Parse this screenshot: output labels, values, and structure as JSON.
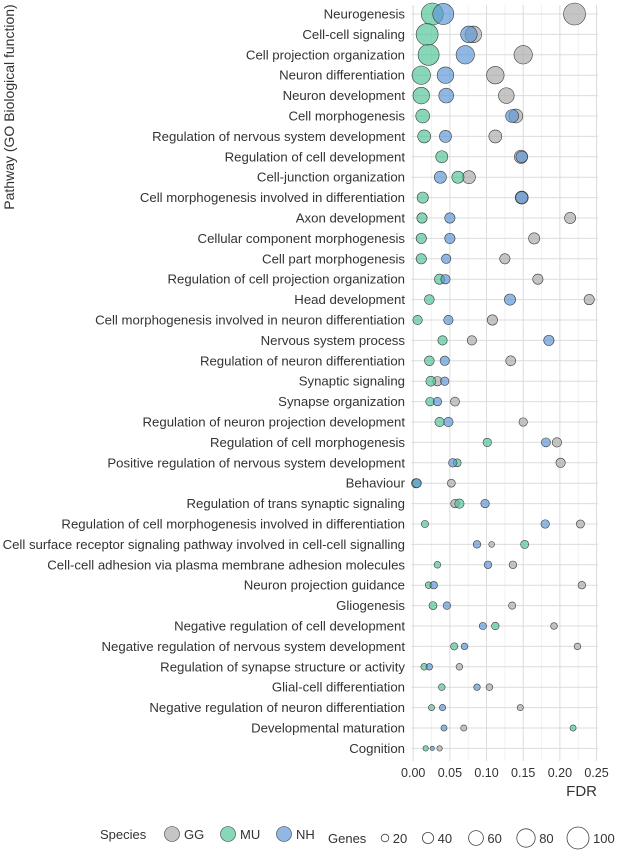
{
  "chart_data": {
    "type": "scatter",
    "ylabel": "Pathway (GO Biological function)",
    "xlabel": "FDR",
    "xlim": [
      -0.003,
      0.252
    ],
    "xticks": [
      0.0,
      0.05,
      0.1,
      0.15,
      0.2,
      0.25
    ],
    "xtick_labels": [
      "0.00",
      "0.05",
      "0.10",
      "0.15",
      "0.20",
      "0.25"
    ],
    "grid": true,
    "categories": [
      "Neurogenesis",
      "Cell-cell signaling",
      "Cell projection organization",
      "Neuron differentiation",
      "Neuron development",
      "Cell morphogenesis",
      "Regulation of nervous system development",
      "Regulation of cell development",
      "Cell-junction organization",
      "Cell morphogenesis involved in differentiation",
      "Axon development",
      "Cellular component morphogenesis",
      "Cell part morphogenesis",
      "Regulation of cell projection organization",
      "Head development",
      "Cell morphogenesis involved in neuron differentiation",
      "Nervous system process",
      "Regulation of neuron differentiation",
      "Synaptic signaling",
      "Synapse organization",
      "Regulation of neuron projection development",
      "Regulation of cell morphogenesis",
      "Positive regulation of nervous system development",
      "Behaviour",
      "Regulation of trans synaptic signaling",
      "Regulation of cell morphogenesis involved in differentiation",
      "Cell surface receptor signaling pathway involved in cell-cell signalling",
      "Cell-cell adhesion via plasma membrane adhesion molecules",
      "Neuron projection guidance",
      "Gliogenesis",
      "Negative regulation of cell development",
      "Negative regulation of nervous system development",
      "Regulation of synapse structure or activity",
      "Glial-cell differentiation",
      "Negative regulation of neuron differentiation",
      "Developmental maturation",
      "Cognition"
    ],
    "series": [
      {
        "name": "GG",
        "color": "#aaaaaa",
        "points": [
          {
            "fdr": 0.22,
            "genes": 100
          },
          {
            "fdr": 0.082,
            "genes": 70
          },
          {
            "fdr": 0.15,
            "genes": 80
          },
          {
            "fdr": 0.112,
            "genes": 75
          },
          {
            "fdr": 0.127,
            "genes": 65
          },
          {
            "fdr": 0.14,
            "genes": 55
          },
          {
            "fdr": 0.112,
            "genes": 50
          },
          {
            "fdr": 0.147,
            "genes": 52
          },
          {
            "fdr": 0.076,
            "genes": 50
          },
          {
            "fdr": 0.148,
            "genes": 50
          },
          {
            "fdr": 0.214,
            "genes": 40
          },
          {
            "fdr": 0.165,
            "genes": 40
          },
          {
            "fdr": 0.125,
            "genes": 35
          },
          {
            "fdr": 0.17,
            "genes": 35
          },
          {
            "fdr": 0.24,
            "genes": 35
          },
          {
            "fdr": 0.108,
            "genes": 35
          },
          {
            "fdr": 0.08,
            "genes": 30
          },
          {
            "fdr": 0.133,
            "genes": 33
          },
          {
            "fdr": 0.033,
            "genes": 30
          },
          {
            "fdr": 0.057,
            "genes": 28
          },
          {
            "fdr": 0.15,
            "genes": 25
          },
          {
            "fdr": 0.196,
            "genes": 30
          },
          {
            "fdr": 0.201,
            "genes": 30
          },
          {
            "fdr": 0.052,
            "genes": 22
          },
          {
            "fdr": 0.057,
            "genes": 25
          },
          {
            "fdr": 0.228,
            "genes": 23
          },
          {
            "fdr": 0.107,
            "genes": 10
          },
          {
            "fdr": 0.136,
            "genes": 20
          },
          {
            "fdr": 0.23,
            "genes": 20
          },
          {
            "fdr": 0.135,
            "genes": 18
          },
          {
            "fdr": 0.192,
            "genes": 15
          },
          {
            "fdr": 0.224,
            "genes": 15
          },
          {
            "fdr": 0.063,
            "genes": 15
          },
          {
            "fdr": 0.104,
            "genes": 15
          },
          {
            "fdr": 0.146,
            "genes": 12
          },
          {
            "fdr": 0.069,
            "genes": 12
          },
          {
            "fdr": 0.036,
            "genes": 8
          }
        ]
      },
      {
        "name": "MU",
        "color": "#4fc496",
        "points": [
          {
            "fdr": 0.026,
            "genes": 100
          },
          {
            "fdr": 0.019,
            "genes": 100
          },
          {
            "fdr": 0.021,
            "genes": 95
          },
          {
            "fdr": 0.011,
            "genes": 80
          },
          {
            "fdr": 0.011,
            "genes": 70
          },
          {
            "fdr": 0.013,
            "genes": 55
          },
          {
            "fdr": 0.015,
            "genes": 50
          },
          {
            "fdr": 0.039,
            "genes": 45
          },
          {
            "fdr": 0.061,
            "genes": 45
          },
          {
            "fdr": 0.013,
            "genes": 40
          },
          {
            "fdr": 0.012,
            "genes": 35
          },
          {
            "fdr": 0.011,
            "genes": 35
          },
          {
            "fdr": 0.011,
            "genes": 35
          },
          {
            "fdr": 0.036,
            "genes": 35
          },
          {
            "fdr": 0.022,
            "genes": 32
          },
          {
            "fdr": 0.006,
            "genes": 30
          },
          {
            "fdr": 0.04,
            "genes": 30
          },
          {
            "fdr": 0.022,
            "genes": 32
          },
          {
            "fdr": 0.024,
            "genes": 33
          },
          {
            "fdr": 0.023,
            "genes": 26
          },
          {
            "fdr": 0.036,
            "genes": 30
          },
          {
            "fdr": 0.101,
            "genes": 25
          },
          {
            "fdr": 0.06,
            "genes": 22
          },
          {
            "fdr": 0.004,
            "genes": 30
          },
          {
            "fdr": 0.063,
            "genes": 30
          },
          {
            "fdr": 0.016,
            "genes": 18
          },
          {
            "fdr": 0.152,
            "genes": 23
          },
          {
            "fdr": 0.033,
            "genes": 15
          },
          {
            "fdr": 0.021,
            "genes": 15
          },
          {
            "fdr": 0.027,
            "genes": 22
          },
          {
            "fdr": 0.112,
            "genes": 20
          },
          {
            "fdr": 0.056,
            "genes": 18
          },
          {
            "fdr": 0.015,
            "genes": 15
          },
          {
            "fdr": 0.039,
            "genes": 15
          },
          {
            "fdr": 0.025,
            "genes": 12
          },
          {
            "fdr": 0.218,
            "genes": 12
          },
          {
            "fdr": 0.017,
            "genes": 8
          }
        ]
      },
      {
        "name": "NH",
        "color": "#5b97d6",
        "points": [
          {
            "fdr": 0.041,
            "genes": 95
          },
          {
            "fdr": 0.076,
            "genes": 70
          },
          {
            "fdr": 0.071,
            "genes": 80
          },
          {
            "fdr": 0.044,
            "genes": 70
          },
          {
            "fdr": 0.045,
            "genes": 60
          },
          {
            "fdr": 0.135,
            "genes": 50
          },
          {
            "fdr": 0.044,
            "genes": 45
          },
          {
            "fdr": 0.148,
            "genes": 42
          },
          {
            "fdr": 0.037,
            "genes": 45
          },
          {
            "fdr": 0.148,
            "genes": 45
          },
          {
            "fdr": 0.05,
            "genes": 35
          },
          {
            "fdr": 0.05,
            "genes": 35
          },
          {
            "fdr": 0.045,
            "genes": 30
          },
          {
            "fdr": 0.044,
            "genes": 30
          },
          {
            "fdr": 0.132,
            "genes": 40
          },
          {
            "fdr": 0.048,
            "genes": 30
          },
          {
            "fdr": 0.185,
            "genes": 35
          },
          {
            "fdr": 0.043,
            "genes": 30
          },
          {
            "fdr": 0.043,
            "genes": 25
          },
          {
            "fdr": 0.033,
            "genes": 25
          },
          {
            "fdr": 0.048,
            "genes": 30
          },
          {
            "fdr": 0.181,
            "genes": 28
          },
          {
            "fdr": 0.054,
            "genes": 25
          },
          {
            "fdr": 0.005,
            "genes": 28
          },
          {
            "fdr": 0.098,
            "genes": 25
          },
          {
            "fdr": 0.18,
            "genes": 25
          },
          {
            "fdr": 0.087,
            "genes": 20
          },
          {
            "fdr": 0.102,
            "genes": 20
          },
          {
            "fdr": 0.028,
            "genes": 20
          },
          {
            "fdr": 0.046,
            "genes": 20
          },
          {
            "fdr": 0.095,
            "genes": 18
          },
          {
            "fdr": 0.07,
            "genes": 15
          },
          {
            "fdr": 0.022,
            "genes": 14
          },
          {
            "fdr": 0.087,
            "genes": 14
          },
          {
            "fdr": 0.04,
            "genes": 13
          },
          {
            "fdr": 0.042,
            "genes": 12
          },
          {
            "fdr": 0.026,
            "genes": 2
          }
        ]
      }
    ],
    "legend": {
      "position": "bottom",
      "species_title": "Species",
      "species": [
        {
          "label": "GG",
          "color": "#aaaaaa"
        },
        {
          "label": "MU",
          "color": "#4fc496"
        },
        {
          "label": "NH",
          "color": "#5b97d6"
        }
      ],
      "size_title": "Genes",
      "sizes": [
        20,
        40,
        60,
        80,
        100
      ],
      "size_labels": [
        "20",
        "40",
        "60",
        "80",
        "100"
      ]
    }
  }
}
